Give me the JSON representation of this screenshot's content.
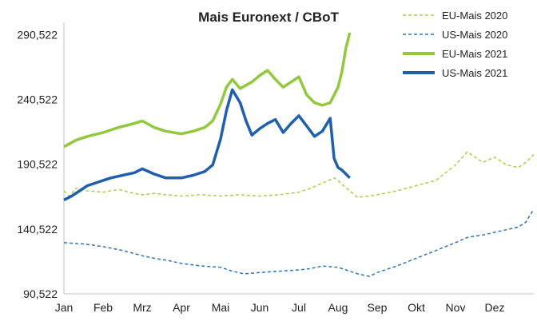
{
  "chart_data": {
    "type": "line",
    "title": "Mais Euronext / CBoT",
    "xlabel": "",
    "ylabel": "",
    "ylim": [
      90.522,
      300
    ],
    "x_domain": [
      0,
      12
    ],
    "yticks": [
      "290,522",
      "240,522",
      "190,522",
      "140,522",
      "90,522"
    ],
    "ytick_values": [
      290.522,
      240.522,
      190.522,
      140.522,
      90.522
    ],
    "xticks": [
      "Jan",
      "Feb",
      "Mrz",
      "Apr",
      "Mai",
      "Jun",
      "Jul",
      "Aug",
      "Sep",
      "Okt",
      "Nov",
      "Dez"
    ],
    "grid": false,
    "legend_position": "top-right",
    "series": [
      {
        "name": "EU-Mais 2020",
        "color": "#a6d14b",
        "style": "dashed",
        "x": [
          0,
          0.15,
          0.3,
          0.6,
          1.0,
          1.4,
          1.8,
          2.0,
          2.3,
          2.6,
          3.0,
          3.5,
          4.0,
          4.5,
          5.0,
          5.5,
          6.0,
          6.3,
          6.6,
          6.9,
          7.0,
          7.1,
          7.3,
          7.5,
          7.8,
          8.0,
          8.5,
          9.0,
          9.5,
          10.0,
          10.3,
          10.7,
          11.0,
          11.3,
          11.6,
          11.8,
          12.0
        ],
        "y": [
          170,
          166,
          172,
          170,
          169,
          171,
          168,
          167,
          168,
          167,
          166,
          167,
          166,
          167,
          166,
          167,
          169,
          172,
          176,
          180,
          178,
          175,
          170,
          165,
          166,
          167,
          170,
          174,
          178,
          190,
          200,
          192,
          196,
          190,
          188,
          192,
          198
        ]
      },
      {
        "name": "US-Mais 2020",
        "color": "#2e75b6",
        "style": "dashed",
        "x": [
          0,
          0.5,
          1.0,
          1.5,
          2.0,
          2.3,
          2.7,
          3.0,
          3.5,
          4.0,
          4.3,
          4.6,
          5.0,
          5.5,
          6.0,
          6.3,
          6.6,
          7.0,
          7.2,
          7.5,
          7.8,
          8.0,
          8.5,
          9.0,
          9.5,
          10.0,
          10.3,
          10.7,
          11.0,
          11.3,
          11.6,
          11.8,
          12.0
        ],
        "y": [
          130,
          129,
          127,
          124,
          120,
          118,
          116,
          114,
          112,
          111,
          108,
          106,
          107,
          108,
          109,
          110,
          112,
          111,
          109,
          106,
          104,
          107,
          112,
          118,
          124,
          130,
          134,
          136,
          138,
          140,
          142,
          146,
          156
        ]
      },
      {
        "name": "EU-Mais 2021",
        "color": "#92c83e",
        "style": "solid",
        "x": [
          0,
          0.3,
          0.6,
          1.0,
          1.4,
          1.8,
          2.0,
          2.3,
          2.6,
          3.0,
          3.3,
          3.6,
          3.8,
          4.0,
          4.15,
          4.3,
          4.5,
          4.8,
          5.0,
          5.2,
          5.4,
          5.6,
          5.8,
          6.0,
          6.2,
          6.4,
          6.6,
          6.8,
          6.9,
          7.0,
          7.1,
          7.2,
          7.3
        ],
        "y": [
          204,
          209,
          212,
          215,
          219,
          222,
          224,
          219,
          216,
          214,
          216,
          219,
          224,
          237,
          250,
          256,
          249,
          254,
          259,
          263,
          256,
          250,
          254,
          258,
          244,
          238,
          236,
          238,
          244,
          250,
          262,
          280,
          292
        ]
      },
      {
        "name": "US-Mais 2021",
        "color": "#1f5fad",
        "style": "solid",
        "x": [
          0,
          0.2,
          0.4,
          0.6,
          0.9,
          1.2,
          1.5,
          1.8,
          2.0,
          2.3,
          2.6,
          3.0,
          3.3,
          3.6,
          3.8,
          4.0,
          4.15,
          4.3,
          4.5,
          4.65,
          4.8,
          5.0,
          5.2,
          5.4,
          5.6,
          5.8,
          6.0,
          6.2,
          6.4,
          6.6,
          6.8,
          6.9,
          7.0,
          7.1,
          7.2,
          7.3
        ],
        "y": [
          163,
          166,
          170,
          174,
          177,
          180,
          182,
          184,
          187,
          183,
          180,
          180,
          182,
          185,
          190,
          210,
          232,
          248,
          238,
          224,
          213,
          218,
          222,
          225,
          215,
          222,
          228,
          220,
          212,
          216,
          226,
          195,
          188,
          186,
          183,
          180
        ]
      }
    ]
  }
}
